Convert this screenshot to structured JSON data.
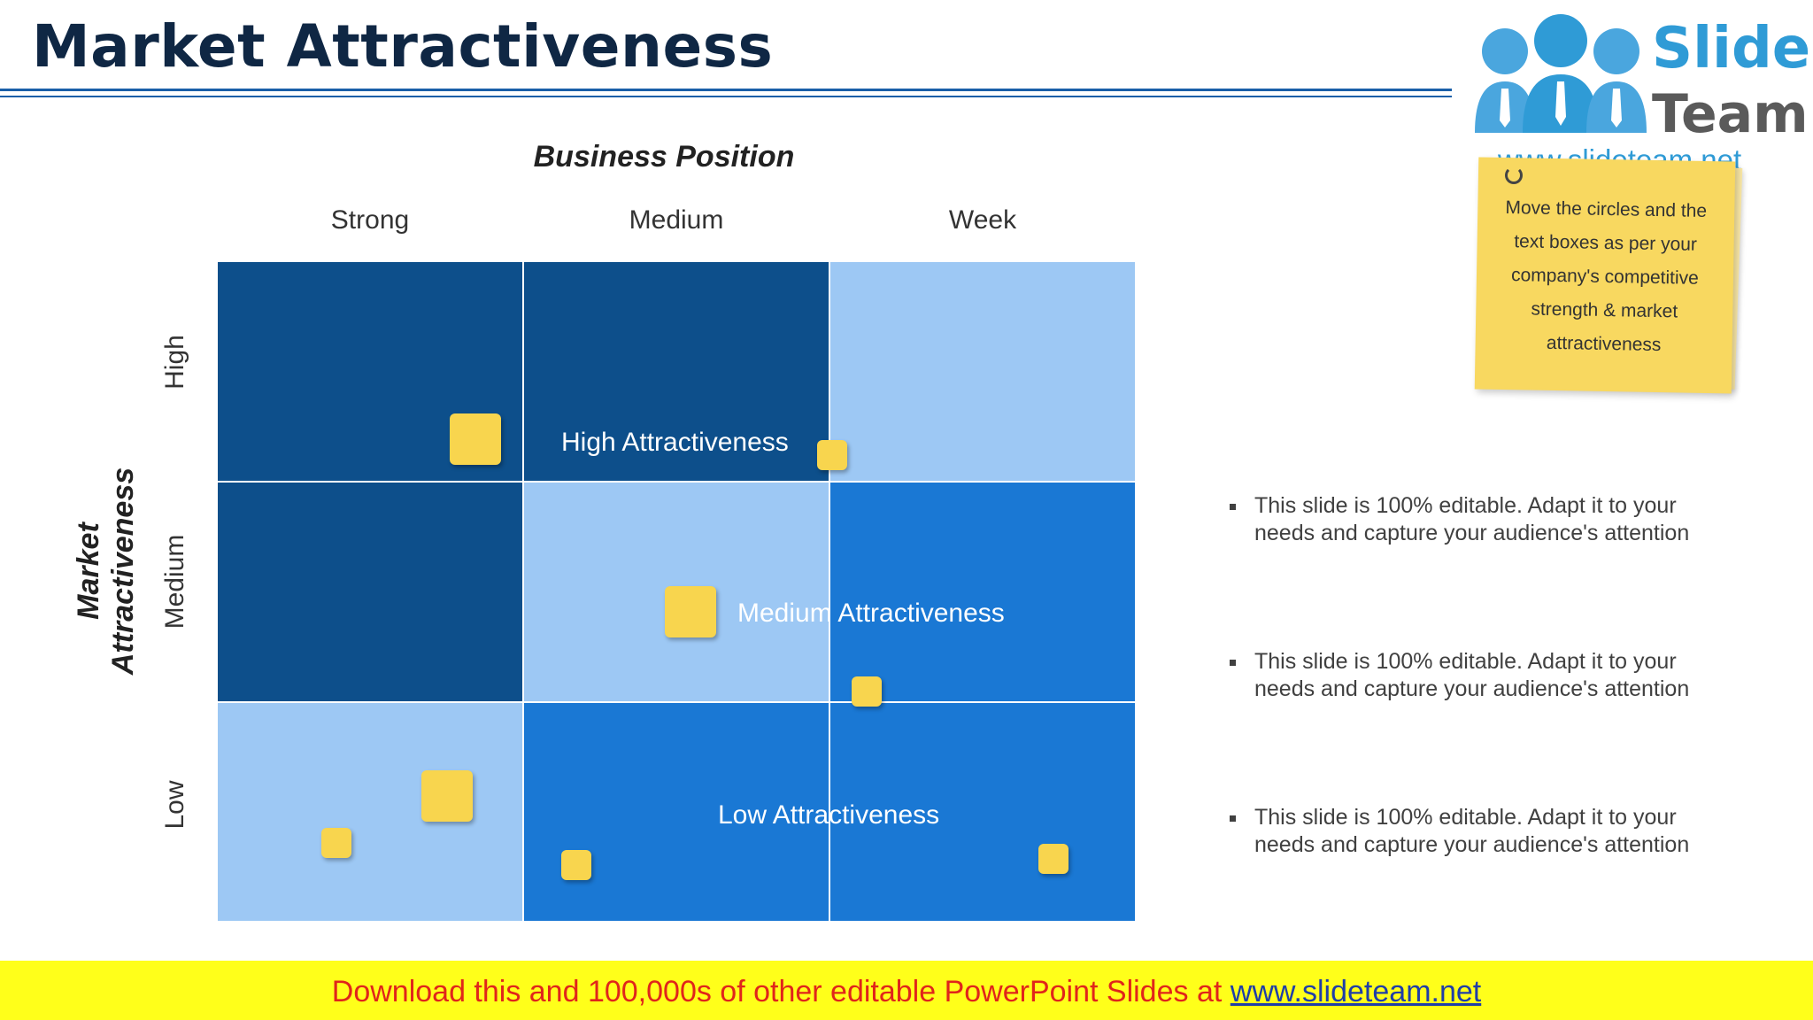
{
  "title": "Market Attractiveness",
  "logo": {
    "word1": "Slide",
    "word2": "Team",
    "url": "www.slideteam.net",
    "color_primary": "#2f9bd6",
    "color_secondary": "#5a5a5a"
  },
  "note": {
    "text": "Move the circles and the text boxes as per your company's competitive strength & market attractiveness"
  },
  "x_axis": {
    "title": "Business Position",
    "columns": [
      "Strong",
      "Medium",
      "Week"
    ]
  },
  "y_axis": {
    "title": "Market Attractiveness",
    "rows": [
      "High",
      "Medium",
      "Low"
    ]
  },
  "matrix": {
    "cell_colors": [
      [
        "dark",
        "dark",
        "light"
      ],
      [
        "dark",
        "light",
        "mid"
      ],
      [
        "light",
        "mid",
        "mid"
      ]
    ],
    "palette": {
      "dark": "#0d4f8b",
      "light": "#9dc8f4",
      "mid": "#1a78d4",
      "marker": "#f8d54e"
    },
    "zones": {
      "high": "High Attractiveness",
      "medium": "Medium Attractiveness",
      "low": "Low Attractiveness"
    }
  },
  "bullets": [
    "This slide is 100% editable. Adapt it to your needs and capture your audience's attention",
    "This slide is 100% editable. Adapt it to your needs and capture your audience's attention",
    "This slide is 100% editable. Adapt it to your needs and capture your audience's attention"
  ],
  "footer": {
    "text": "Download this and 100,000s of other editable PowerPoint Slides at ",
    "url": "www.slideteam.net"
  }
}
